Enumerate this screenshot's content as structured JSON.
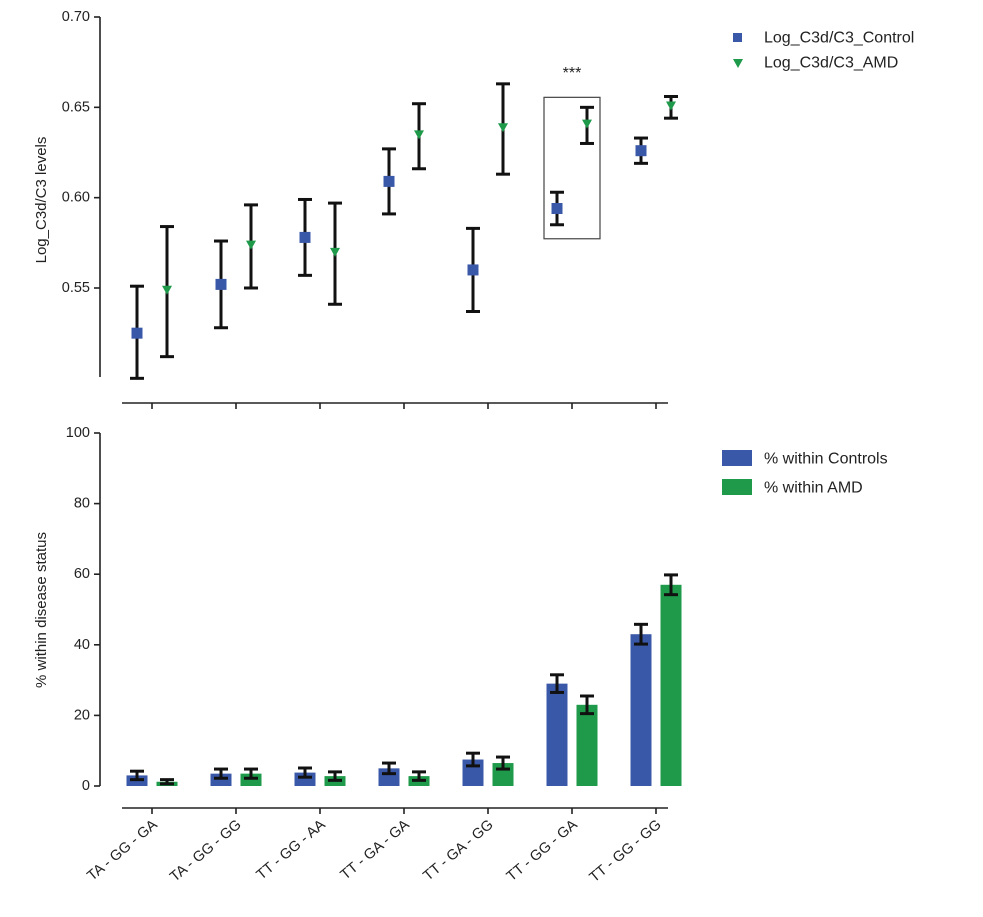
{
  "chart_data": [
    {
      "type": "scatter",
      "ylabel": "Log_C3d/C3 levels",
      "ylim": [
        0.5,
        0.7
      ],
      "yticks": [
        "0.70",
        "0.65",
        "0.60",
        "0.55"
      ],
      "categories": [
        "TA - GG - GA",
        "TA - GG - GG",
        "TT - GG - AA",
        "TT - GA - GA",
        "TT - GA - GG",
        "TT - GG - GA",
        "TT - GG - GG"
      ],
      "legend": "top-right",
      "series": [
        {
          "name": "Log_C3d/C3_Control",
          "color": "#3a58a8",
          "marker": "square",
          "values": [
            0.525,
            0.552,
            0.578,
            0.609,
            0.56,
            0.594,
            0.626
          ],
          "err_low": [
            0.5,
            0.528,
            0.557,
            0.591,
            0.537,
            0.585,
            0.619
          ],
          "err_high": [
            0.551,
            0.576,
            0.599,
            0.627,
            0.583,
            0.603,
            0.633
          ]
        },
        {
          "name": "Log_C3d/C3_AMD",
          "color": "#1e9a4a",
          "marker": "triangle-down",
          "values": [
            0.549,
            0.574,
            0.57,
            0.635,
            0.639,
            0.641,
            0.651
          ],
          "err_low": [
            0.512,
            0.55,
            0.541,
            0.616,
            0.613,
            0.63,
            0.644
          ],
          "err_high": [
            0.584,
            0.596,
            0.597,
            0.652,
            0.663,
            0.65,
            0.656
          ]
        }
      ],
      "annotation": {
        "text": "***",
        "category_index": 5
      }
    },
    {
      "type": "bar",
      "ylabel": "% within disease status",
      "ylim": [
        0,
        100
      ],
      "yticks": [
        "100",
        "80",
        "60",
        "40",
        "20",
        "0"
      ],
      "categories": [
        "TA - GG - GA",
        "TA - GG - GG",
        "TT - GG - AA",
        "TT - GA - GA",
        "TT - GA - GG",
        "TT - GG - GA",
        "TT - GG - GG"
      ],
      "legend": "top-right",
      "series": [
        {
          "name": "% within Controls",
          "color": "#3a58a8",
          "values": [
            3.0,
            3.5,
            3.8,
            5.0,
            7.5,
            29.0,
            43.0
          ],
          "err": [
            1.2,
            1.3,
            1.3,
            1.5,
            1.8,
            2.5,
            2.8
          ]
        },
        {
          "name": "% within AMD",
          "color": "#1e9a4a",
          "values": [
            1.2,
            3.5,
            2.8,
            2.8,
            6.5,
            23.0,
            57.0
          ],
          "err": [
            0.6,
            1.3,
            1.2,
            1.2,
            1.7,
            2.5,
            2.8
          ]
        }
      ]
    }
  ]
}
